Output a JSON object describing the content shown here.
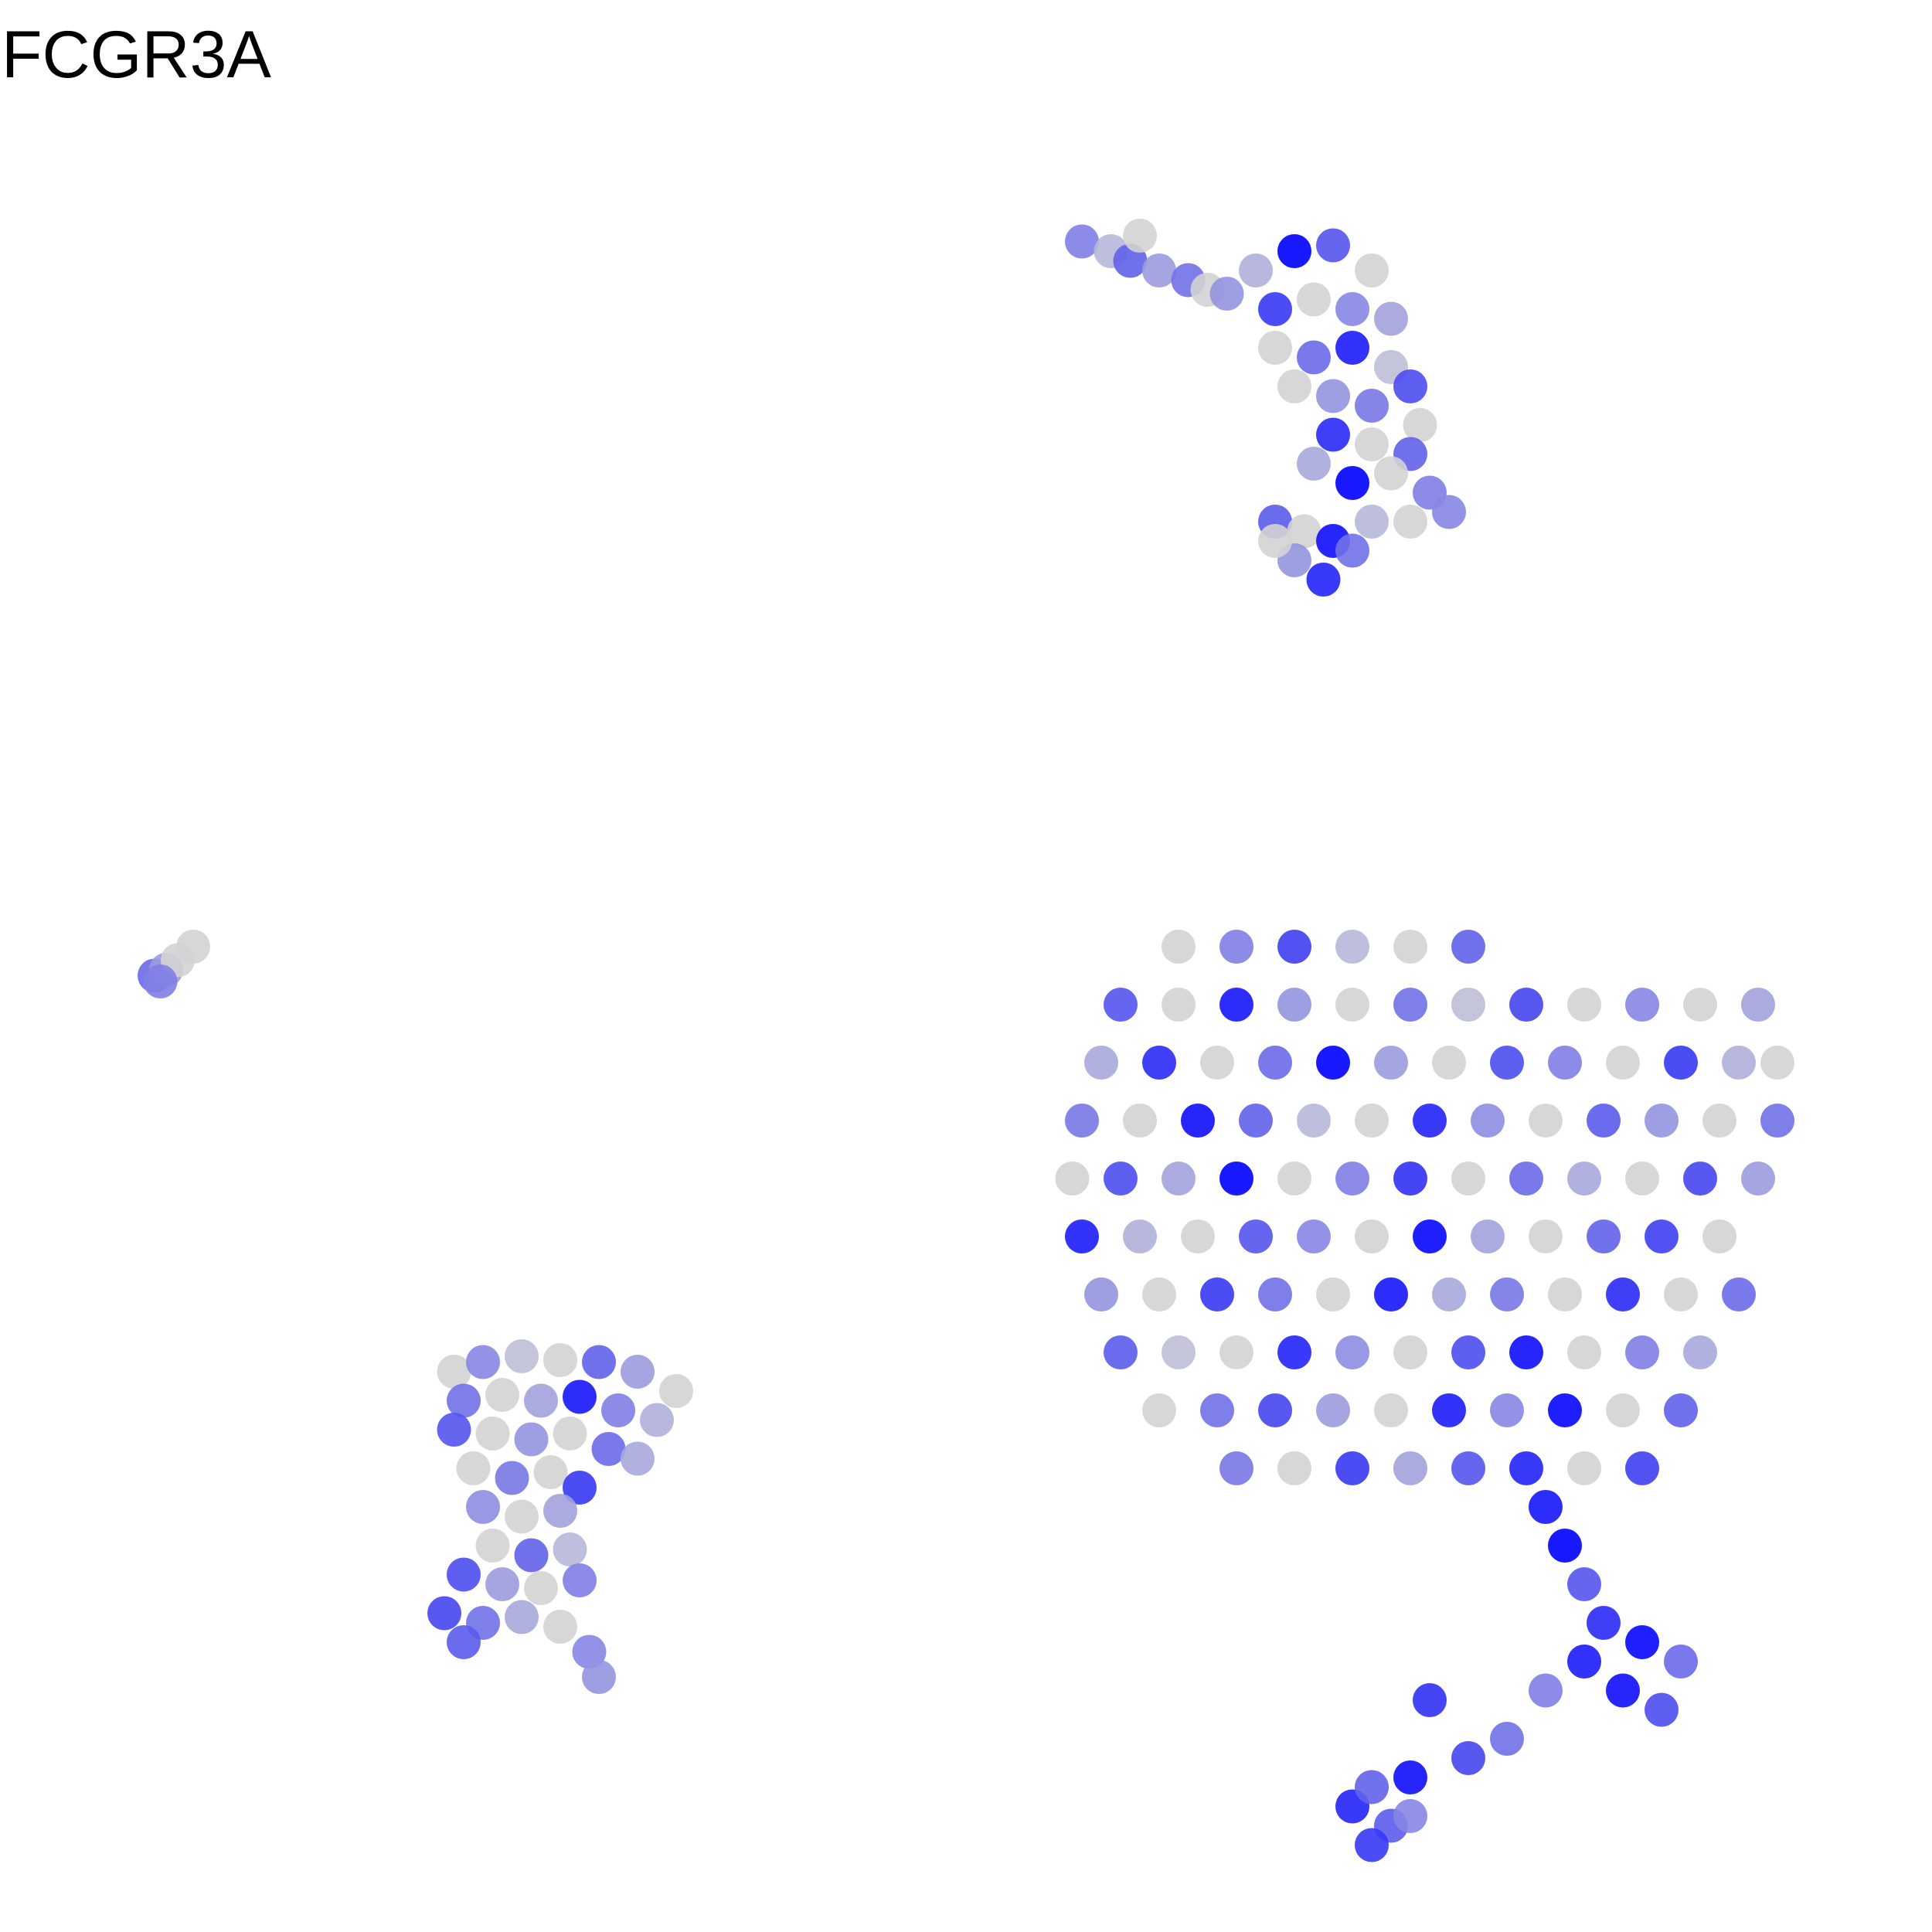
{
  "chart_data": {
    "type": "scatter",
    "title": "FCGR3A",
    "xlim": [
      0,
      100
    ],
    "ylim": [
      0,
      100
    ],
    "vlim": [
      0,
      3
    ],
    "colors": [
      "#d3d3d3",
      "#0000ff"
    ],
    "series": [
      {
        "x": [
          56,
          57.5,
          58.5,
          59,
          60,
          61.5,
          62.5,
          63.5,
          65,
          67,
          69,
          71,
          66,
          68,
          70,
          72,
          66,
          68,
          70,
          72,
          73,
          67,
          69,
          71,
          73.5,
          69,
          71,
          73,
          68,
          70,
          72,
          74,
          66,
          67.5,
          69,
          71,
          73,
          75,
          67,
          68.5,
          66,
          70
        ],
        "y": [
          87.5,
          87,
          86.5,
          87.8,
          86,
          85.5,
          85,
          84.8,
          86,
          87,
          87.3,
          86,
          84,
          84.5,
          84,
          83.5,
          82,
          81.5,
          82,
          81,
          80,
          80,
          79.5,
          79,
          78,
          77.5,
          77,
          76.5,
          76,
          75,
          75.5,
          74.5,
          73,
          72.5,
          72,
          73,
          73,
          73.5,
          71,
          70,
          72,
          71.5
        ],
        "values": [
          1.2,
          0.4,
          1.6,
          0,
          0.8,
          1.4,
          0,
          0.9,
          0.5,
          3,
          1.8,
          0,
          2.2,
          0,
          1.1,
          0.7,
          0,
          1.5,
          2.6,
          0.3,
          1.9,
          0,
          0.9,
          1.3,
          0,
          2.4,
          0,
          1.6,
          0.6,
          3,
          0,
          1.2,
          1.7,
          0,
          2.8,
          0.4,
          0,
          1.1,
          0.9,
          2.5,
          0,
          1.4
        ]
      },
      {
        "x": [
          8,
          8.6,
          9.2,
          8.3,
          10
        ],
        "y": [
          49.5,
          49.8,
          50.3,
          49.2,
          51
        ],
        "values": [
          1.5,
          0.8,
          0,
          1.2,
          0
        ]
      },
      {
        "x": [
          23.5,
          25,
          27,
          29,
          31,
          33,
          35,
          24,
          26,
          28,
          30,
          32,
          34,
          23.5,
          25.5,
          27.5,
          29.5,
          31.5,
          33,
          24.5,
          26.5,
          28.5,
          30,
          25,
          27,
          29,
          25.5,
          27.5,
          29.5,
          24,
          26,
          28,
          30,
          23,
          25,
          27,
          29,
          30.5,
          24,
          31
        ],
        "y": [
          29,
          29.5,
          29.8,
          29.6,
          29.5,
          29,
          28,
          27.5,
          27.8,
          27.5,
          27.7,
          27,
          26.5,
          26,
          25.8,
          25.5,
          25.8,
          25,
          24.5,
          24,
          23.5,
          23.8,
          23,
          22,
          21.5,
          21.8,
          20,
          19.5,
          19.8,
          18.5,
          18,
          17.8,
          18.2,
          16.5,
          16,
          16.3,
          15.8,
          14.5,
          15,
          13.2
        ],
        "values": [
          0,
          1.1,
          0.3,
          0,
          1.6,
          0.8,
          0,
          1.4,
          0,
          0.7,
          2.7,
          1.2,
          0.5,
          1.8,
          0,
          0.9,
          0,
          1.5,
          0.6,
          0,
          1.3,
          0,
          2.2,
          1,
          0,
          0.7,
          0,
          1.6,
          0.4,
          1.9,
          0.8,
          0,
          1.2,
          2,
          1.4,
          0.6,
          0,
          1.1,
          1.7,
          0.9
        ]
      },
      {
        "x": [
          61,
          64,
          67,
          70,
          73,
          76,
          58,
          61,
          64,
          67,
          70,
          73,
          76,
          79,
          82,
          85,
          88,
          91,
          57,
          60,
          63,
          66,
          69,
          72,
          75,
          78,
          81,
          84,
          87,
          90,
          92,
          56,
          59,
          62,
          65,
          68,
          71,
          74,
          77,
          80,
          83,
          86,
          89,
          92,
          55.5,
          58,
          61,
          64,
          67,
          70,
          73,
          76,
          79,
          82,
          85,
          88,
          91,
          56,
          59,
          62,
          65,
          68,
          71,
          74,
          77,
          80,
          83,
          86,
          89,
          57,
          60,
          63,
          66,
          69,
          72,
          75,
          78,
          81,
          84,
          87,
          90,
          58,
          61,
          64,
          67,
          70,
          73,
          76,
          79,
          82,
          85,
          88,
          60,
          63,
          66,
          69,
          72,
          75,
          78,
          81,
          84,
          87,
          64,
          67,
          70,
          73,
          76,
          79,
          82,
          85,
          80,
          81,
          82,
          83,
          85,
          87,
          82,
          80,
          84,
          86,
          78,
          76,
          74,
          72,
          70,
          73,
          71,
          71,
          73
        ],
        "y": [
          51,
          51,
          51,
          51,
          51,
          51,
          48,
          48,
          48,
          48,
          48,
          48,
          48,
          48,
          48,
          48,
          48,
          48,
          45,
          45,
          45,
          45,
          45,
          45,
          45,
          45,
          45,
          45,
          45,
          45,
          45,
          42,
          42,
          42,
          42,
          42,
          42,
          42,
          42,
          42,
          42,
          42,
          42,
          42,
          39,
          39,
          39,
          39,
          39,
          39,
          39,
          39,
          39,
          39,
          39,
          39,
          39,
          36,
          36,
          36,
          36,
          36,
          36,
          36,
          36,
          36,
          36,
          36,
          36,
          33,
          33,
          33,
          33,
          33,
          33,
          33,
          33,
          33,
          33,
          33,
          33,
          30,
          30,
          30,
          30,
          30,
          30,
          30,
          30,
          30,
          30,
          30,
          27,
          27,
          27,
          27,
          27,
          27,
          27,
          27,
          27,
          27,
          24,
          24,
          24,
          24,
          24,
          24,
          24,
          24,
          22,
          20,
          18,
          16,
          15,
          14,
          14,
          12.5,
          12.5,
          11.5,
          10,
          9,
          12,
          5.5,
          6.5,
          6,
          4.5,
          7.5,
          8
        ],
        "values": [
          0,
          1.2,
          2.1,
          0.4,
          0,
          1.6,
          1.8,
          0,
          2.7,
          0.9,
          0,
          1.4,
          0.3,
          2,
          0,
          1.1,
          0,
          0.7,
          0.6,
          2.4,
          0,
          1.5,
          3,
          0.8,
          0,
          1.9,
          1.2,
          0,
          2.2,
          0.5,
          0,
          1.3,
          0,
          2.8,
          1.6,
          0.4,
          0,
          2.5,
          1,
          0,
          1.7,
          0.9,
          0,
          1.4,
          0,
          1.9,
          0.7,
          3,
          0,
          1.2,
          2.3,
          0,
          1.5,
          0.6,
          0,
          2,
          0.8,
          2.6,
          0.5,
          0,
          1.8,
          1.1,
          0,
          2.9,
          0.7,
          0,
          1.6,
          2.1,
          0,
          0.9,
          0,
          2.2,
          1.4,
          0,
          2.7,
          0.6,
          1.3,
          0,
          2.4,
          0,
          1.5,
          1.7,
          0.3,
          0,
          2.5,
          1,
          0,
          1.9,
          2.8,
          0,
          1.2,
          0.6,
          0,
          1.4,
          2,
          0.8,
          0,
          2.6,
          1.1,
          2.9,
          0,
          1.6,
          1.3,
          0,
          2.2,
          0.7,
          1.8,
          2.5,
          0,
          2.1,
          2.7,
          3,
          1.8,
          2.4,
          2.9,
          1.5,
          2.6,
          1.2,
          2.8,
          1.9,
          1.4,
          2,
          2.3,
          1.7,
          2.5,
          1.1,
          2.2,
          1.6,
          2.8
        ]
      }
    ]
  }
}
